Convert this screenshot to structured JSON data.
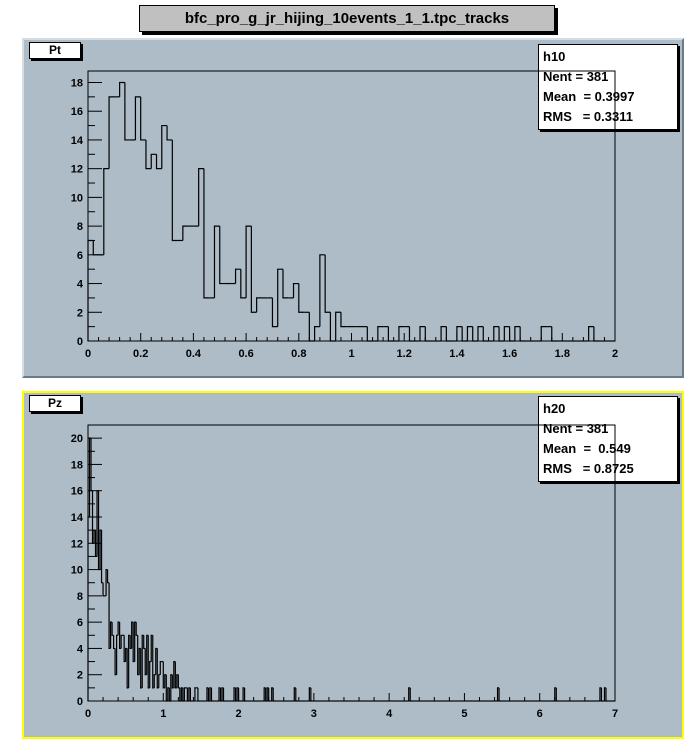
{
  "canvas_title": "bfc_pro_g_jr_hijing_10events_1_1.tpc_tracks",
  "colors": {
    "pad_bg": "#adbcc7",
    "selected_border": "#ffff00",
    "line": "#000000"
  },
  "chart_data": [
    {
      "type": "bar",
      "histogram": true,
      "title": "Pt",
      "stats": {
        "name": "h10",
        "nent": "Nent = 381",
        "mean": "Mean  = 0.3997",
        "rms": "RMS   = 0.3311"
      },
      "xlim": [
        0,
        2
      ],
      "ylim": [
        0,
        18.8
      ],
      "bin_width": 0.02,
      "values": [
        7,
        6,
        6,
        12,
        17,
        17,
        18,
        14,
        14,
        17,
        14,
        12,
        13,
        12,
        15,
        14,
        7,
        7,
        8,
        8,
        8,
        12,
        3,
        3,
        8,
        4,
        4,
        4,
        5,
        3,
        8,
        2,
        3,
        3,
        3,
        1,
        5,
        3,
        3,
        4,
        2,
        2,
        0,
        1,
        6,
        2,
        0,
        2,
        1,
        1,
        1,
        1,
        1,
        0,
        0,
        1,
        1,
        0,
        0,
        1,
        1,
        0,
        0,
        1,
        0,
        0,
        0,
        1,
        0,
        0,
        1,
        0,
        1,
        0,
        1,
        0,
        0,
        1,
        0,
        1,
        0,
        1,
        0,
        0,
        0,
        0,
        1,
        1,
        0,
        0,
        0,
        0,
        0,
        0,
        0,
        1,
        0,
        0,
        0,
        0
      ],
      "xticks": [
        0,
        0.2,
        0.4,
        0.6,
        0.8,
        1,
        1.2,
        1.4,
        1.6,
        1.8,
        2
      ],
      "xtick_labels": [
        "0",
        "0.2",
        "0.4",
        "0.6",
        "0.8",
        "1",
        "1.2",
        "1.4",
        "1.6",
        "1.8",
        "2"
      ],
      "yticks": [
        0,
        2,
        4,
        6,
        8,
        10,
        12,
        14,
        16,
        18
      ],
      "ytick_labels": [
        "0",
        "2",
        "4",
        "6",
        "8",
        "10",
        "12",
        "14",
        "16",
        "18"
      ]
    },
    {
      "type": "bar",
      "histogram": true,
      "title": "Pz",
      "stats": {
        "name": "h20",
        "nent": "Nent = 381",
        "mean": "Mean  =  0.549",
        "rms": "RMS   = 0.8725"
      },
      "xlim": [
        0,
        7
      ],
      "ylim": [
        0,
        21
      ],
      "bin_width": 0.02,
      "values": [
        14,
        20,
        16,
        12,
        13,
        11,
        16,
        10,
        13,
        9,
        8,
        8,
        10,
        9,
        4,
        6,
        5,
        4,
        2,
        5,
        6,
        4,
        5,
        5,
        3,
        4,
        1,
        5,
        4,
        6,
        3,
        6,
        5,
        2,
        4,
        1,
        5,
        4,
        2,
        5,
        1,
        3,
        5,
        1,
        2,
        4,
        1,
        2,
        3,
        3,
        1,
        2,
        0,
        1,
        0,
        2,
        1,
        3,
        1,
        2,
        1,
        0,
        1,
        0,
        1,
        1
      ],
      "tail": [
        [
          1.34,
          1
        ],
        [
          1.42,
          1
        ],
        [
          1.44,
          1
        ],
        [
          1.58,
          1
        ],
        [
          1.62,
          1
        ],
        [
          1.74,
          1
        ],
        [
          1.78,
          1
        ],
        [
          1.94,
          1
        ],
        [
          1.98,
          1
        ],
        [
          2.06,
          1
        ],
        [
          2.34,
          1
        ],
        [
          2.38,
          1
        ],
        [
          2.44,
          1
        ],
        [
          2.74,
          1
        ],
        [
          2.94,
          1
        ],
        [
          4.26,
          1
        ],
        [
          5.44,
          1
        ],
        [
          6.2,
          1
        ],
        [
          6.8,
          1
        ],
        [
          6.86,
          1
        ]
      ],
      "xticks": [
        0,
        1,
        2,
        3,
        4,
        5,
        6,
        7
      ],
      "xtick_labels": [
        "0",
        "1",
        "2",
        "3",
        "4",
        "5",
        "6",
        "7"
      ],
      "yticks": [
        0,
        2,
        4,
        6,
        8,
        10,
        12,
        14,
        16,
        18,
        20
      ],
      "ytick_labels": [
        "0",
        "2",
        "4",
        "6",
        "8",
        "10",
        "12",
        "14",
        "16",
        "18",
        "20"
      ]
    }
  ]
}
